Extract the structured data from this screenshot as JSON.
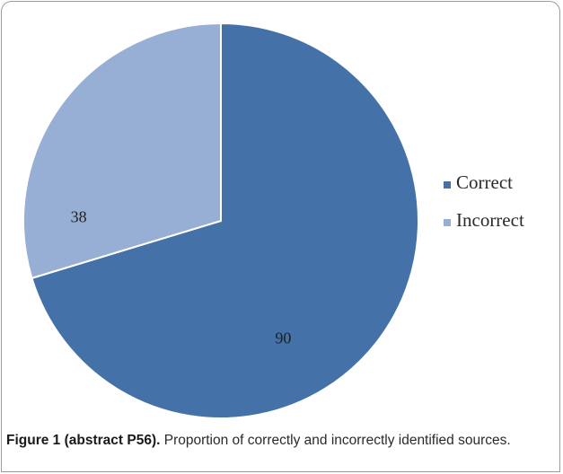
{
  "chart_data": {
    "type": "pie",
    "categories": [
      "Correct",
      "Incorrect"
    ],
    "values": [
      90,
      38
    ],
    "colors": [
      "#4571a9",
      "#97afd4"
    ],
    "legend_position": "right",
    "start": "top, clockwise, Correct first"
  },
  "caption": {
    "label": "Figure 1 (abstract P56).",
    "text": " Proportion of correctly and incorrectly identified sources."
  }
}
